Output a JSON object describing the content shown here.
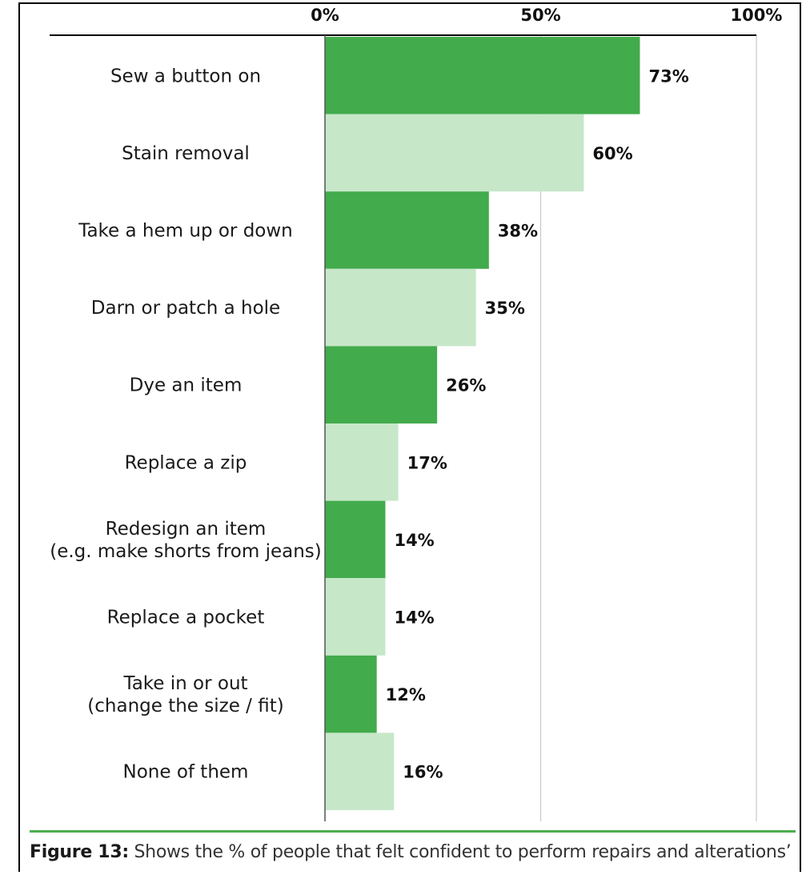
{
  "chart_data": {
    "type": "bar",
    "orientation": "horizontal",
    "categories": [
      [
        "Sew a button on"
      ],
      [
        "Stain removal"
      ],
      [
        "Take a hem up or down"
      ],
      [
        "Darn or patch a hole"
      ],
      [
        "Dye an item"
      ],
      [
        "Replace a zip"
      ],
      [
        "Redesign an item",
        "(e.g. make shorts from jeans)"
      ],
      [
        "Replace a pocket"
      ],
      [
        "Take in or out",
        "(change the size / fit)"
      ],
      [
        "None of them"
      ]
    ],
    "values": [
      73,
      60,
      38,
      35,
      26,
      17,
      14,
      14,
      12,
      16
    ],
    "value_labels": [
      "73%",
      "60%",
      "38%",
      "35%",
      "26%",
      "17%",
      "14%",
      "14%",
      "12%",
      "16%"
    ],
    "xlim": [
      0,
      100
    ],
    "x_ticks": [
      0,
      50,
      100
    ],
    "x_tick_labels": [
      "0%",
      "50%",
      "100%"
    ],
    "x_axis_position": "top",
    "grid": true,
    "colors": [
      "#42ab4c",
      "#c7e7c9"
    ],
    "color_pattern": "alternating",
    "axis_color": "#000000",
    "grid_color": "#c8c8c8",
    "rule_color": "#4cae4f"
  },
  "caption": {
    "label": "Figure 13:",
    "text": " Shows the % of people that felt confident to perform repairs and alterations’"
  }
}
